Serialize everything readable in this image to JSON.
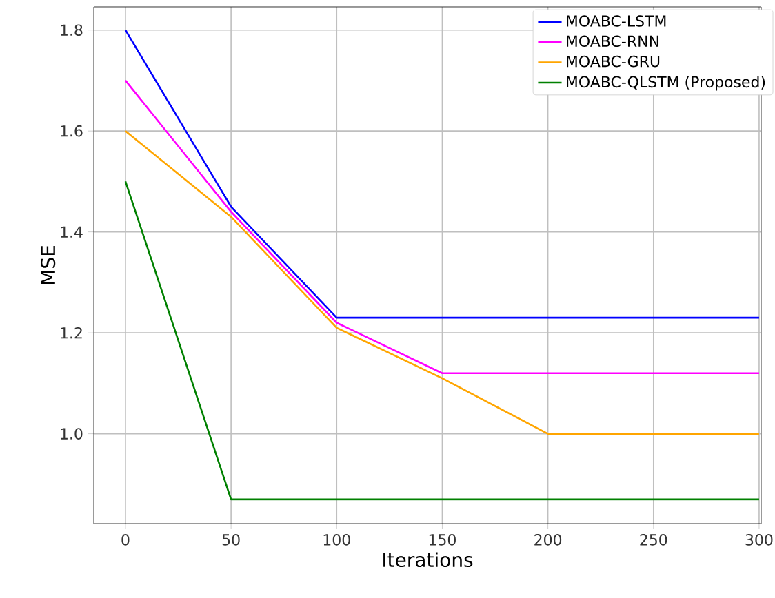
{
  "chart_data": {
    "type": "line",
    "xlabel": "Iterations",
    "ylabel": "MSE",
    "x": [
      0,
      50,
      100,
      150,
      200,
      250,
      300
    ],
    "series": [
      {
        "name": "MOABC-LSTM",
        "color": "#0000ff",
        "values": [
          1.8,
          1.45,
          1.23,
          1.23,
          1.23,
          1.23,
          1.23
        ]
      },
      {
        "name": "MOABC-RNN",
        "color": "#ff00ff",
        "values": [
          1.7,
          1.44,
          1.22,
          1.12,
          1.12,
          1.12,
          1.12
        ]
      },
      {
        "name": "MOABC-GRU",
        "color": "#ffa500",
        "values": [
          1.6,
          1.43,
          1.21,
          1.11,
          1.0,
          1.0,
          1.0
        ]
      },
      {
        "name": "MOABC-QLSTM (Proposed)",
        "color": "#008000",
        "values": [
          1.5,
          0.87,
          0.87,
          0.87,
          0.87,
          0.87,
          0.87
        ]
      }
    ],
    "xlim": [
      -15,
      301
    ],
    "ylim": [
      0.822,
      1.846
    ],
    "xticks": [
      0,
      50,
      100,
      150,
      200,
      250,
      300
    ],
    "yticks": [
      {
        "value": 1.0,
        "label": "1.0"
      },
      {
        "value": 1.2,
        "label": "1.2"
      },
      {
        "value": 1.4,
        "label": "1.4"
      },
      {
        "value": 1.6,
        "label": "1.6"
      },
      {
        "value": 1.8,
        "label": "1.8"
      }
    ],
    "grid": true,
    "legend": "top right",
    "marker": "none",
    "line_style": "solid"
  }
}
